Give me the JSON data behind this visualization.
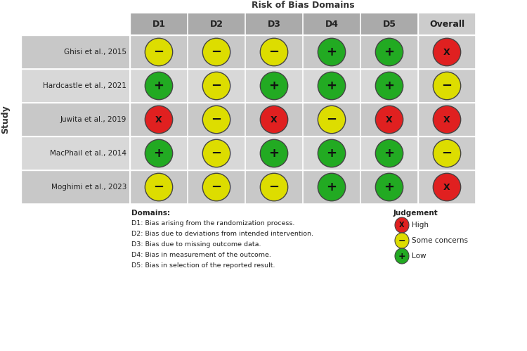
{
  "title": "Risk of Bias Domains",
  "ylabel": "Study",
  "studies": [
    "Ghisi et al., 2015",
    "Hardcastle et al., 2021",
    "Juwita et al., 2019",
    "MacPhail et al., 2014",
    "Moghimi et al., 2023"
  ],
  "domains": [
    "D1",
    "D2",
    "D3",
    "D4",
    "D5",
    "Overall"
  ],
  "grid": [
    [
      "Y",
      "Y",
      "Y",
      "G",
      "G",
      "R"
    ],
    [
      "G",
      "Y",
      "G",
      "G",
      "G",
      "Y"
    ],
    [
      "R",
      "Y",
      "R",
      "Y",
      "R",
      "R"
    ],
    [
      "G",
      "Y",
      "G",
      "G",
      "G",
      "Y"
    ],
    [
      "Y",
      "Y",
      "Y",
      "G",
      "G",
      "R"
    ]
  ],
  "symbols": {
    "R": "X",
    "Y": "-",
    "G": "+"
  },
  "colors": {
    "R": "#e02020",
    "Y": "#dddd00",
    "G": "#22aa22"
  },
  "row_bg_even": "#c8c8c8",
  "row_bg_odd": "#d8d8d8",
  "header_bg": "#aaaaaa",
  "overall_col_bg": "#cccccc",
  "fig_bg": "#f5f5f5",
  "legend_items": [
    {
      "color": "#e02020",
      "symbol": "X",
      "label": "High"
    },
    {
      "color": "#dddd00",
      "symbol": "-",
      "label": "Some concerns"
    },
    {
      "color": "#22aa22",
      "symbol": "+",
      "label": "Low"
    }
  ],
  "domain_descriptions": [
    "D1: Bias arising from the randomization process.",
    "D2: Bias due to deviations from intended intervention.",
    "D3: Bias due to missing outcome data.",
    "D4: Bias in measurement of the outcome.",
    "D5: Bias in selection of the reported result."
  ]
}
